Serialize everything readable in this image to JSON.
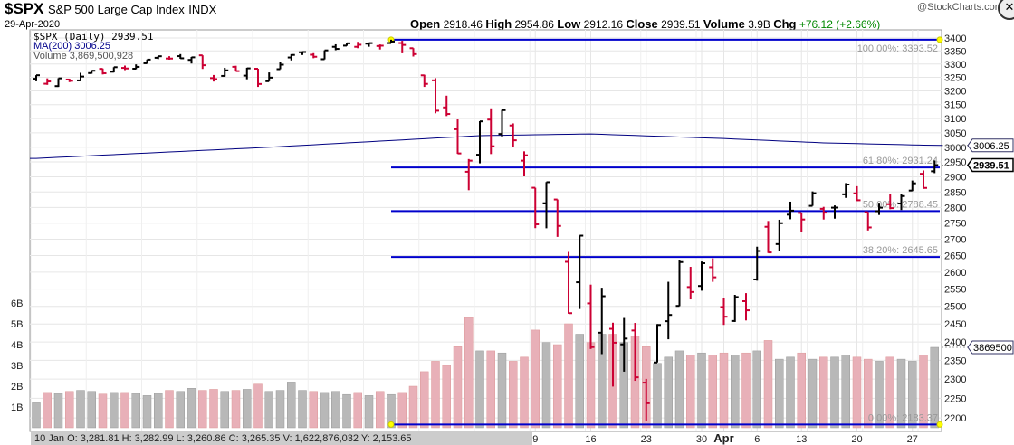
{
  "header": {
    "symbol": "$SPX",
    "name": "S&P 500 Large Cap Index",
    "exchange": "INDX",
    "date": "29-Apr-2020",
    "brand": "@StockCharts.com",
    "close_icon": "close-x-icon",
    "open_label": "Open",
    "open": "2918.46",
    "high_label": "High",
    "high": "2954.86",
    "low_label": "Low",
    "low": "2912.16",
    "close_label": "Close",
    "close": "2939.51",
    "volume_label": "Volume",
    "volume": "3.9B",
    "chg_label": "Chg",
    "chg": "+76.12 (+2.66%)"
  },
  "legend": {
    "price": "$SPX (Daily) 2939.51",
    "ma": "MA(200) 3006.25",
    "volume": "Volume 3,869,500,928"
  },
  "tooltip": "10 Jan O: 3,281.81   H: 3,282.99   L: 3,260.86   C: 3,265.35   V: 1,622,876,032   Y: 2,153.65",
  "chart_data": {
    "type": "ohlc",
    "title": "$SPX (Daily)",
    "yscale": "log",
    "ylim": [
      2180,
      3420
    ],
    "yticks": [
      2200,
      2250,
      2300,
      2350,
      2400,
      2450,
      2500,
      2550,
      2600,
      2650,
      2700,
      2750,
      2800,
      2850,
      2900,
      2950,
      3000,
      3050,
      3100,
      3150,
      3200,
      3250,
      3300,
      3350,
      3400
    ],
    "vol_ticks": [
      "1B",
      "2B",
      "3B",
      "4B",
      "5B",
      "6B"
    ],
    "xtick_labels": [
      {
        "label": "9",
        "date": "Mar 9"
      },
      {
        "label": "16",
        "date": "Mar 16"
      },
      {
        "label": "23",
        "date": "Mar 23"
      },
      {
        "label": "30",
        "date": "Mar 30"
      },
      {
        "label": "Apr",
        "date": "Apr 1"
      },
      {
        "label": "6",
        "date": "Apr 6"
      },
      {
        "label": "13",
        "date": "Apr 13"
      },
      {
        "label": "20",
        "date": "Apr 20"
      },
      {
        "label": "27",
        "date": "Apr 27"
      }
    ],
    "dates": [
      "Jan 2",
      "Jan 3",
      "Jan 6",
      "Jan 7",
      "Jan 8",
      "Jan 9",
      "Jan 10",
      "Jan 13",
      "Jan 14",
      "Jan 15",
      "Jan 16",
      "Jan 17",
      "Jan 21",
      "Jan 22",
      "Jan 23",
      "Jan 24",
      "Jan 27",
      "Jan 28",
      "Jan 29",
      "Jan 30",
      "Jan 31",
      "Feb 3",
      "Feb 4",
      "Feb 5",
      "Feb 6",
      "Feb 7",
      "Feb 10",
      "Feb 11",
      "Feb 12",
      "Feb 13",
      "Feb 14",
      "Feb 18",
      "Feb 19",
      "Feb 20",
      "Feb 21",
      "Feb 24",
      "Feb 25",
      "Feb 26",
      "Feb 27",
      "Feb 28",
      "Mar 2",
      "Mar 3",
      "Mar 4",
      "Mar 5",
      "Mar 6",
      "Mar 9",
      "Mar 10",
      "Mar 11",
      "Mar 12",
      "Mar 13",
      "Mar 16",
      "Mar 17",
      "Mar 18",
      "Mar 19",
      "Mar 20",
      "Mar 23",
      "Mar 24",
      "Mar 25",
      "Mar 26",
      "Mar 27",
      "Mar 30",
      "Mar 31",
      "Apr 1",
      "Apr 2",
      "Apr 3",
      "Apr 6",
      "Apr 7",
      "Apr 8",
      "Apr 9",
      "Apr 13",
      "Apr 14",
      "Apr 15",
      "Apr 16",
      "Apr 17",
      "Apr 20",
      "Apr 21",
      "Apr 22",
      "Apr 23",
      "Apr 24",
      "Apr 27",
      "Apr 28",
      "Apr 29"
    ],
    "ohlc": [
      [
        3244.7,
        3258.1,
        3235.5,
        3257.9
      ],
      [
        3226.4,
        3246.2,
        3222.3,
        3234.9
      ],
      [
        3217.6,
        3246.8,
        3214.6,
        3246.3
      ],
      [
        3241.9,
        3244.9,
        3232.4,
        3237.2
      ],
      [
        3238.6,
        3267.1,
        3236.7,
        3253.1
      ],
      [
        3266.0,
        3275.6,
        3263.7,
        3274.7
      ],
      [
        3281.8,
        3283.0,
        3260.9,
        3265.4
      ],
      [
        3271.1,
        3288.1,
        3268.4,
        3288.1
      ],
      [
        3285.4,
        3294.2,
        3277.2,
        3283.2
      ],
      [
        3282.3,
        3298.7,
        3280.7,
        3289.3
      ],
      [
        3303.0,
        3317.1,
        3302.0,
        3316.8
      ],
      [
        3323.7,
        3329.9,
        3318.9,
        3329.6
      ],
      [
        3321.0,
        3329.8,
        3316.6,
        3320.8
      ],
      [
        3330.0,
        3337.8,
        3320.0,
        3321.8
      ],
      [
        3315.8,
        3326.9,
        3302.0,
        3325.5
      ],
      [
        3333.1,
        3333.2,
        3281.5,
        3295.5
      ],
      [
        3247.2,
        3258.9,
        3234.5,
        3243.6
      ],
      [
        3255.4,
        3285.8,
        3253.2,
        3276.2
      ],
      [
        3289.5,
        3293.5,
        3271.9,
        3273.4
      ],
      [
        3256.5,
        3285.9,
        3242.8,
        3283.7
      ],
      [
        3282.3,
        3282.3,
        3214.7,
        3225.5
      ],
      [
        3235.7,
        3268.4,
        3235.7,
        3248.9
      ],
      [
        3280.6,
        3306.9,
        3280.6,
        3297.6
      ],
      [
        3324.9,
        3337.6,
        3313.8,
        3334.7
      ],
      [
        3344.9,
        3348.0,
        3334.4,
        3345.8
      ],
      [
        3335.5,
        3341.4,
        3322.1,
        3327.7
      ],
      [
        3318.3,
        3352.3,
        3317.8,
        3352.1
      ],
      [
        3365.9,
        3375.6,
        3352.7,
        3357.8
      ],
      [
        3370.5,
        3381.5,
        3369.7,
        3379.5
      ],
      [
        3365.9,
        3385.1,
        3360.5,
        3373.9
      ],
      [
        3378.1,
        3380.7,
        3366.2,
        3380.2
      ],
      [
        3369.0,
        3375.0,
        3355.6,
        3370.3
      ],
      [
        3380.4,
        3393.5,
        3378.8,
        3386.2
      ],
      [
        3380.5,
        3389.2,
        3341.0,
        3373.2
      ],
      [
        3360.5,
        3360.8,
        3328.5,
        3337.8
      ],
      [
        3257.6,
        3259.8,
        3214.7,
        3225.9
      ],
      [
        3238.9,
        3247.0,
        3118.8,
        3128.2
      ],
      [
        3139.9,
        3182.5,
        3109.0,
        3116.4
      ],
      [
        3062.5,
        3097.1,
        2977.4,
        2978.8
      ],
      [
        2916.9,
        2959.7,
        2855.8,
        2954.2
      ],
      [
        2974.3,
        3091.0,
        2945.2,
        3090.2
      ],
      [
        3096.5,
        3136.7,
        2976.6,
        3003.4
      ],
      [
        3045.8,
        3131.0,
        3034.4,
        3130.1
      ],
      [
        3075.7,
        3083.0,
        2999.8,
        3023.9
      ],
      [
        2954.2,
        2985.9,
        2901.5,
        2972.4
      ],
      [
        2863.9,
        2863.9,
        2734.4,
        2746.6
      ],
      [
        2813.5,
        2882.6,
        2734.0,
        2882.2
      ],
      [
        2825.6,
        2825.6,
        2707.2,
        2741.4
      ],
      [
        2630.9,
        2661.0,
        2478.9,
        2480.6
      ],
      [
        2570.0,
        2711.3,
        2492.4,
        2711.0
      ],
      [
        2508.6,
        2563.0,
        2380.9,
        2386.1
      ],
      [
        2425.7,
        2553.9,
        2367.0,
        2529.2
      ],
      [
        2436.5,
        2453.6,
        2280.5,
        2398.1
      ],
      [
        2393.5,
        2467.0,
        2319.8,
        2409.4
      ],
      [
        2431.9,
        2453.0,
        2295.6,
        2304.9
      ],
      [
        2290.7,
        2300.7,
        2191.9,
        2237.4
      ],
      [
        2344.4,
        2449.7,
        2344.4,
        2447.3
      ],
      [
        2457.8,
        2571.4,
        2407.5,
        2475.6
      ],
      [
        2501.3,
        2637.0,
        2500.7,
        2630.1
      ],
      [
        2555.9,
        2615.9,
        2520.0,
        2541.5
      ],
      [
        2559.0,
        2631.8,
        2545.3,
        2626.7
      ],
      [
        2614.7,
        2641.4,
        2571.2,
        2584.6
      ],
      [
        2498.1,
        2522.8,
        2447.5,
        2470.5
      ],
      [
        2458.5,
        2533.2,
        2455.8,
        2526.9
      ],
      [
        2514.9,
        2538.2,
        2460.0,
        2488.7
      ],
      [
        2578.3,
        2676.9,
        2574.6,
        2663.7
      ],
      [
        2738.7,
        2756.9,
        2657.7,
        2659.4
      ],
      [
        2685.0,
        2760.8,
        2663.3,
        2750.0
      ],
      [
        2777.0,
        2818.6,
        2762.4,
        2789.8
      ],
      [
        2782.5,
        2782.5,
        2721.2,
        2761.6
      ],
      [
        2805.1,
        2851.9,
        2805.1,
        2846.1
      ],
      [
        2795.6,
        2801.9,
        2761.5,
        2783.4
      ],
      [
        2799.3,
        2806.5,
        2764.3,
        2799.6
      ],
      [
        2842.4,
        2879.2,
        2830.9,
        2874.6
      ],
      [
        2845.6,
        2869.0,
        2820.4,
        2823.2
      ],
      [
        2784.8,
        2785.5,
        2727.1,
        2736.6
      ],
      [
        2787.9,
        2815.1,
        2776.0,
        2799.3
      ],
      [
        2810.4,
        2844.9,
        2794.3,
        2797.8
      ],
      [
        2812.6,
        2842.7,
        2791.8,
        2836.7
      ],
      [
        2854.7,
        2887.7,
        2852.9,
        2878.5
      ],
      [
        2910.0,
        2921.2,
        2860.7,
        2863.4
      ],
      [
        2918.5,
        2954.9,
        2912.2,
        2939.5
      ]
    ],
    "volume_b": [
      1.2,
      1.7,
      1.65,
      1.75,
      1.8,
      1.75,
      1.62,
      1.7,
      1.7,
      1.65,
      1.55,
      1.65,
      1.8,
      1.75,
      1.9,
      1.8,
      1.85,
      1.75,
      1.8,
      1.85,
      2.1,
      1.75,
      1.8,
      2.2,
      1.8,
      1.75,
      1.7,
      1.75,
      1.6,
      1.7,
      1.55,
      1.75,
      1.6,
      1.7,
      2.0,
      2.7,
      3.2,
      3.0,
      3.9,
      5.3,
      3.7,
      3.7,
      3.6,
      3.2,
      3.4,
      4.7,
      4.1,
      4.0,
      5.0,
      4.5,
      4.1,
      4.5,
      4.5,
      4.1,
      4.4,
      3.9,
      3.1,
      3.4,
      3.7,
      3.5,
      3.6,
      3.5,
      3.6,
      3.5,
      3.6,
      3.7,
      4.2,
      3.3,
      3.4,
      3.6,
      3.3,
      3.4,
      3.4,
      3.5,
      3.4,
      3.3,
      3.2,
      3.4,
      3.3,
      3.2,
      3.5,
      3.87
    ],
    "ma200": {
      "dates": [
        "Jan 2",
        "Feb 3",
        "Mar 2",
        "Mar 16",
        "Apr 1",
        "Apr 15",
        "Apr 29"
      ],
      "values": [
        2962,
        3000,
        3040,
        3046,
        3030,
        3015,
        3006.25
      ]
    },
    "fib": {
      "start": "Feb 19",
      "levels": [
        {
          "label": "100.00%: 3393.52",
          "value": 3393.52
        },
        {
          "label": "61.80%: 2931.24",
          "value": 2931.24
        },
        {
          "label": "50.00%: 2788.45",
          "value": 2788.45
        },
        {
          "label": "38.20%: 2645.65",
          "value": 2645.65
        },
        {
          "label": "0.00%: 2183.37",
          "value": 2183.37
        }
      ]
    },
    "value_tags": {
      "ma": "3006.25",
      "price": "2939.51",
      "volume": "3869500"
    },
    "colors": {
      "up": "#000000",
      "down": "#cc0033",
      "vol_up": "#b8b8b8",
      "vol_down": "#e8b0b8",
      "ma": "#000080",
      "fib": "#0000cc"
    }
  }
}
